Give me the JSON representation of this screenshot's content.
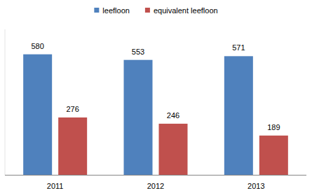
{
  "chart_data": {
    "type": "bar",
    "categories": [
      "2011",
      "2012",
      "2013"
    ],
    "series": [
      {
        "name": "leefloon",
        "color": "#4f81bd",
        "values": [
          580,
          553,
          571
        ]
      },
      {
        "name": "equivalent leefloon",
        "color": "#c0504d",
        "values": [
          276,
          246,
          189
        ]
      }
    ],
    "ylim": [
      0,
      700
    ],
    "data_labels": true,
    "tick_labels": "x",
    "legend": "top"
  }
}
